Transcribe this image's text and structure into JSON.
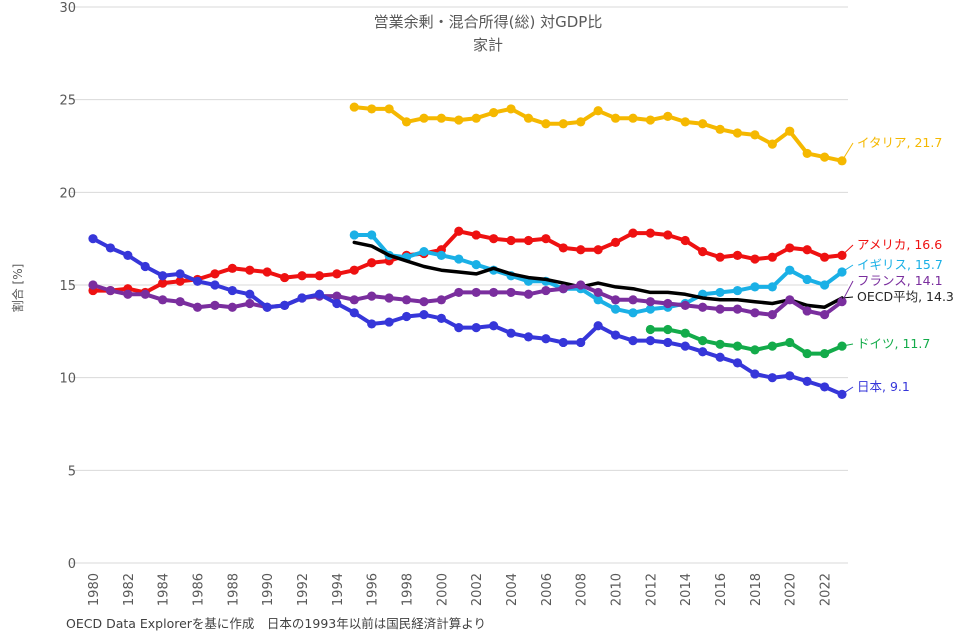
{
  "chart_data": {
    "type": "line",
    "title": "営業余剰・混合所得(総) 対GDP比",
    "subtitle": "家計",
    "xlabel": "",
    "ylabel": "割合 [%]",
    "ylim": [
      0,
      30
    ],
    "yticks": [
      0,
      5,
      10,
      15,
      20,
      25,
      30
    ],
    "xlim": [
      1980,
      2023
    ],
    "xticks": [
      "1980",
      "1982",
      "1984",
      "1986",
      "1988",
      "1990",
      "1992",
      "1994",
      "1996",
      "1998",
      "2000",
      "2002",
      "2004",
      "2006",
      "2008",
      "2010",
      "2012",
      "2014",
      "2016",
      "2018",
      "2020",
      "2022"
    ],
    "grid": true,
    "series": [
      {
        "name": "イタリア",
        "color": "#f5b800",
        "marker": true,
        "end_label": "イタリア, 21.7",
        "x": [
          1995,
          1996,
          1997,
          1998,
          1999,
          2000,
          2001,
          2002,
          2003,
          2004,
          2005,
          2006,
          2007,
          2008,
          2009,
          2010,
          2011,
          2012,
          2013,
          2014,
          2015,
          2016,
          2017,
          2018,
          2019,
          2020,
          2021,
          2022,
          2023
        ],
        "values": [
          24.6,
          24.5,
          24.5,
          23.8,
          24.0,
          24.0,
          23.9,
          24.0,
          24.3,
          24.5,
          24.0,
          23.7,
          23.7,
          23.8,
          24.4,
          24.0,
          24.0,
          23.9,
          24.1,
          23.8,
          23.7,
          23.4,
          23.2,
          23.1,
          22.6,
          23.3,
          22.1,
          21.9,
          21.7
        ]
      },
      {
        "name": "アメリカ",
        "color": "#ee1111",
        "marker": true,
        "end_label": "アメリカ, 16.6",
        "x": [
          1980,
          1981,
          1982,
          1983,
          1984,
          1985,
          1986,
          1987,
          1988,
          1989,
          1990,
          1991,
          1992,
          1993,
          1994,
          1995,
          1996,
          1997,
          1998,
          1999,
          2000,
          2001,
          2002,
          2003,
          2004,
          2005,
          2006,
          2007,
          2008,
          2009,
          2010,
          2011,
          2012,
          2013,
          2014,
          2015,
          2016,
          2017,
          2018,
          2019,
          2020,
          2021,
          2022,
          2023
        ],
        "values": [
          14.7,
          14.7,
          14.8,
          14.6,
          15.1,
          15.2,
          15.3,
          15.6,
          15.9,
          15.8,
          15.7,
          15.4,
          15.5,
          15.5,
          15.6,
          15.8,
          16.2,
          16.3,
          16.6,
          16.7,
          16.9,
          17.9,
          17.7,
          17.5,
          17.4,
          17.4,
          17.5,
          17.0,
          16.9,
          16.9,
          17.3,
          17.8,
          17.8,
          17.7,
          17.4,
          16.8,
          16.5,
          16.6,
          16.4,
          16.5,
          17.0,
          16.9,
          16.5,
          16.6
        ]
      },
      {
        "name": "イギリス",
        "color": "#1ab0e6",
        "marker": true,
        "end_label": "イギリス, 15.7",
        "x": [
          1995,
          1996,
          1997,
          1998,
          1999,
          2000,
          2001,
          2002,
          2003,
          2004,
          2005,
          2006,
          2007,
          2008,
          2009,
          2010,
          2011,
          2012,
          2013,
          2014,
          2015,
          2016,
          2017,
          2018,
          2019,
          2020,
          2021,
          2022,
          2023
        ],
        "values": [
          17.7,
          17.7,
          16.6,
          16.5,
          16.8,
          16.6,
          16.4,
          16.1,
          15.8,
          15.5,
          15.2,
          15.2,
          14.8,
          14.8,
          14.2,
          13.7,
          13.5,
          13.7,
          13.8,
          14.0,
          14.5,
          14.6,
          14.7,
          14.9,
          14.9,
          15.8,
          15.3,
          15.0,
          15.7
        ]
      },
      {
        "name": "OECD平均",
        "color": "#000000",
        "marker": false,
        "end_label": "OECD平均, 14.3",
        "x": [
          1995,
          1996,
          1997,
          1998,
          1999,
          2000,
          2001,
          2002,
          2003,
          2004,
          2005,
          2006,
          2007,
          2008,
          2009,
          2010,
          2011,
          2012,
          2013,
          2014,
          2015,
          2016,
          2017,
          2018,
          2019,
          2020,
          2021,
          2022,
          2023
        ],
        "values": [
          17.3,
          17.1,
          16.6,
          16.3,
          16.0,
          15.8,
          15.7,
          15.6,
          15.9,
          15.6,
          15.4,
          15.3,
          15.1,
          14.9,
          15.1,
          14.9,
          14.8,
          14.6,
          14.6,
          14.5,
          14.3,
          14.2,
          14.2,
          14.1,
          14.0,
          14.2,
          13.9,
          13.8,
          14.3
        ]
      },
      {
        "name": "フランス",
        "color": "#7a2e9e",
        "marker": true,
        "end_label": "フランス, 14.1",
        "x": [
          1980,
          1981,
          1982,
          1983,
          1984,
          1985,
          1986,
          1987,
          1988,
          1989,
          1990,
          1991,
          1992,
          1993,
          1994,
          1995,
          1996,
          1997,
          1998,
          1999,
          2000,
          2001,
          2002,
          2003,
          2004,
          2005,
          2006,
          2007,
          2008,
          2009,
          2010,
          2011,
          2012,
          2013,
          2014,
          2015,
          2016,
          2017,
          2018,
          2019,
          2020,
          2021,
          2022,
          2023
        ],
        "values": [
          15.0,
          14.7,
          14.5,
          14.5,
          14.2,
          14.1,
          13.8,
          13.9,
          13.8,
          14.0,
          13.8,
          13.9,
          14.3,
          14.4,
          14.4,
          14.2,
          14.4,
          14.3,
          14.2,
          14.1,
          14.2,
          14.6,
          14.6,
          14.6,
          14.6,
          14.5,
          14.7,
          14.8,
          15.0,
          14.6,
          14.2,
          14.2,
          14.1,
          14.0,
          13.9,
          13.8,
          13.7,
          13.7,
          13.5,
          13.4,
          14.2,
          13.6,
          13.4,
          14.1
        ]
      },
      {
        "name": "ドイツ",
        "color": "#13ab4a",
        "marker": true,
        "end_label": "ドイツ, 11.7",
        "x": [
          2012,
          2013,
          2014,
          2015,
          2016,
          2017,
          2018,
          2019,
          2020,
          2021,
          2022,
          2023
        ],
        "values": [
          12.6,
          12.6,
          12.4,
          12.0,
          11.8,
          11.7,
          11.5,
          11.7,
          11.9,
          11.3,
          11.3,
          11.7
        ]
      },
      {
        "name": "日本",
        "color": "#3636d9",
        "marker": true,
        "end_label": "日本, 9.1",
        "x": [
          1980,
          1981,
          1982,
          1983,
          1984,
          1985,
          1986,
          1987,
          1988,
          1989,
          1990,
          1991,
          1992,
          1993,
          1994,
          1995,
          1996,
          1997,
          1998,
          1999,
          2000,
          2001,
          2002,
          2003,
          2004,
          2005,
          2006,
          2007,
          2008,
          2009,
          2010,
          2011,
          2012,
          2013,
          2014,
          2015,
          2016,
          2017,
          2018,
          2019,
          2020,
          2021,
          2022,
          2023
        ],
        "values": [
          17.5,
          17.0,
          16.6,
          16.0,
          15.5,
          15.6,
          15.2,
          15.0,
          14.7,
          14.5,
          13.8,
          13.9,
          14.3,
          14.5,
          14.0,
          13.5,
          12.9,
          13.0,
          13.3,
          13.4,
          13.2,
          12.7,
          12.7,
          12.8,
          12.4,
          12.2,
          12.1,
          11.9,
          11.9,
          12.8,
          12.3,
          12.0,
          12.0,
          11.9,
          11.7,
          11.4,
          11.1,
          10.8,
          10.2,
          10.0,
          10.1,
          9.8,
          9.5,
          9.1
        ]
      }
    ]
  },
  "source_note": "OECD Data Explorerを基に作成　日本の1993年以前は国民経済計算より"
}
